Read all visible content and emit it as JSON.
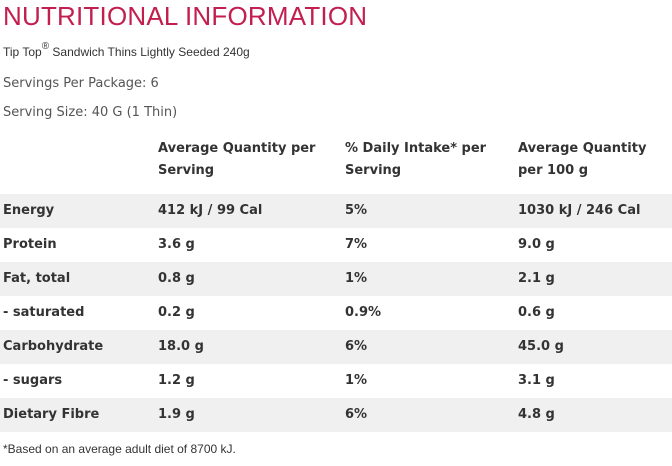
{
  "title": "NUTRITIONAL INFORMATION",
  "product": {
    "brand": "Tip Top",
    "registered": "®",
    "name": " Sandwich Thins Lightly Seeded 240g"
  },
  "servings_per_package": "Servings Per Package: 6",
  "serving_size": "Serving Size: 40 G (1 Thin)",
  "table": {
    "headers": [
      "",
      "Average Quantity per Serving",
      "% Daily Intake* per Serving",
      "Average Quantity per 100 g"
    ],
    "rows": [
      [
        "Energy",
        "412 kJ / 99 Cal",
        "5%",
        "1030 kJ / 246 Cal"
      ],
      [
        "Protein",
        "3.6 g",
        "7%",
        "9.0 g"
      ],
      [
        "Fat, total",
        "0.8 g",
        "1%",
        "2.1 g"
      ],
      [
        "- saturated",
        "0.2 g",
        "0.9%",
        "0.6 g"
      ],
      [
        "Carbohydrate",
        "18.0 g",
        "6%",
        "45.0 g"
      ],
      [
        "- sugars",
        "1.2 g",
        "1%",
        "3.1 g"
      ],
      [
        "Dietary Fibre",
        "1.9 g",
        "6%",
        "4.8 g"
      ]
    ]
  },
  "footnote": "*Based on an average adult diet of 8700 kJ."
}
